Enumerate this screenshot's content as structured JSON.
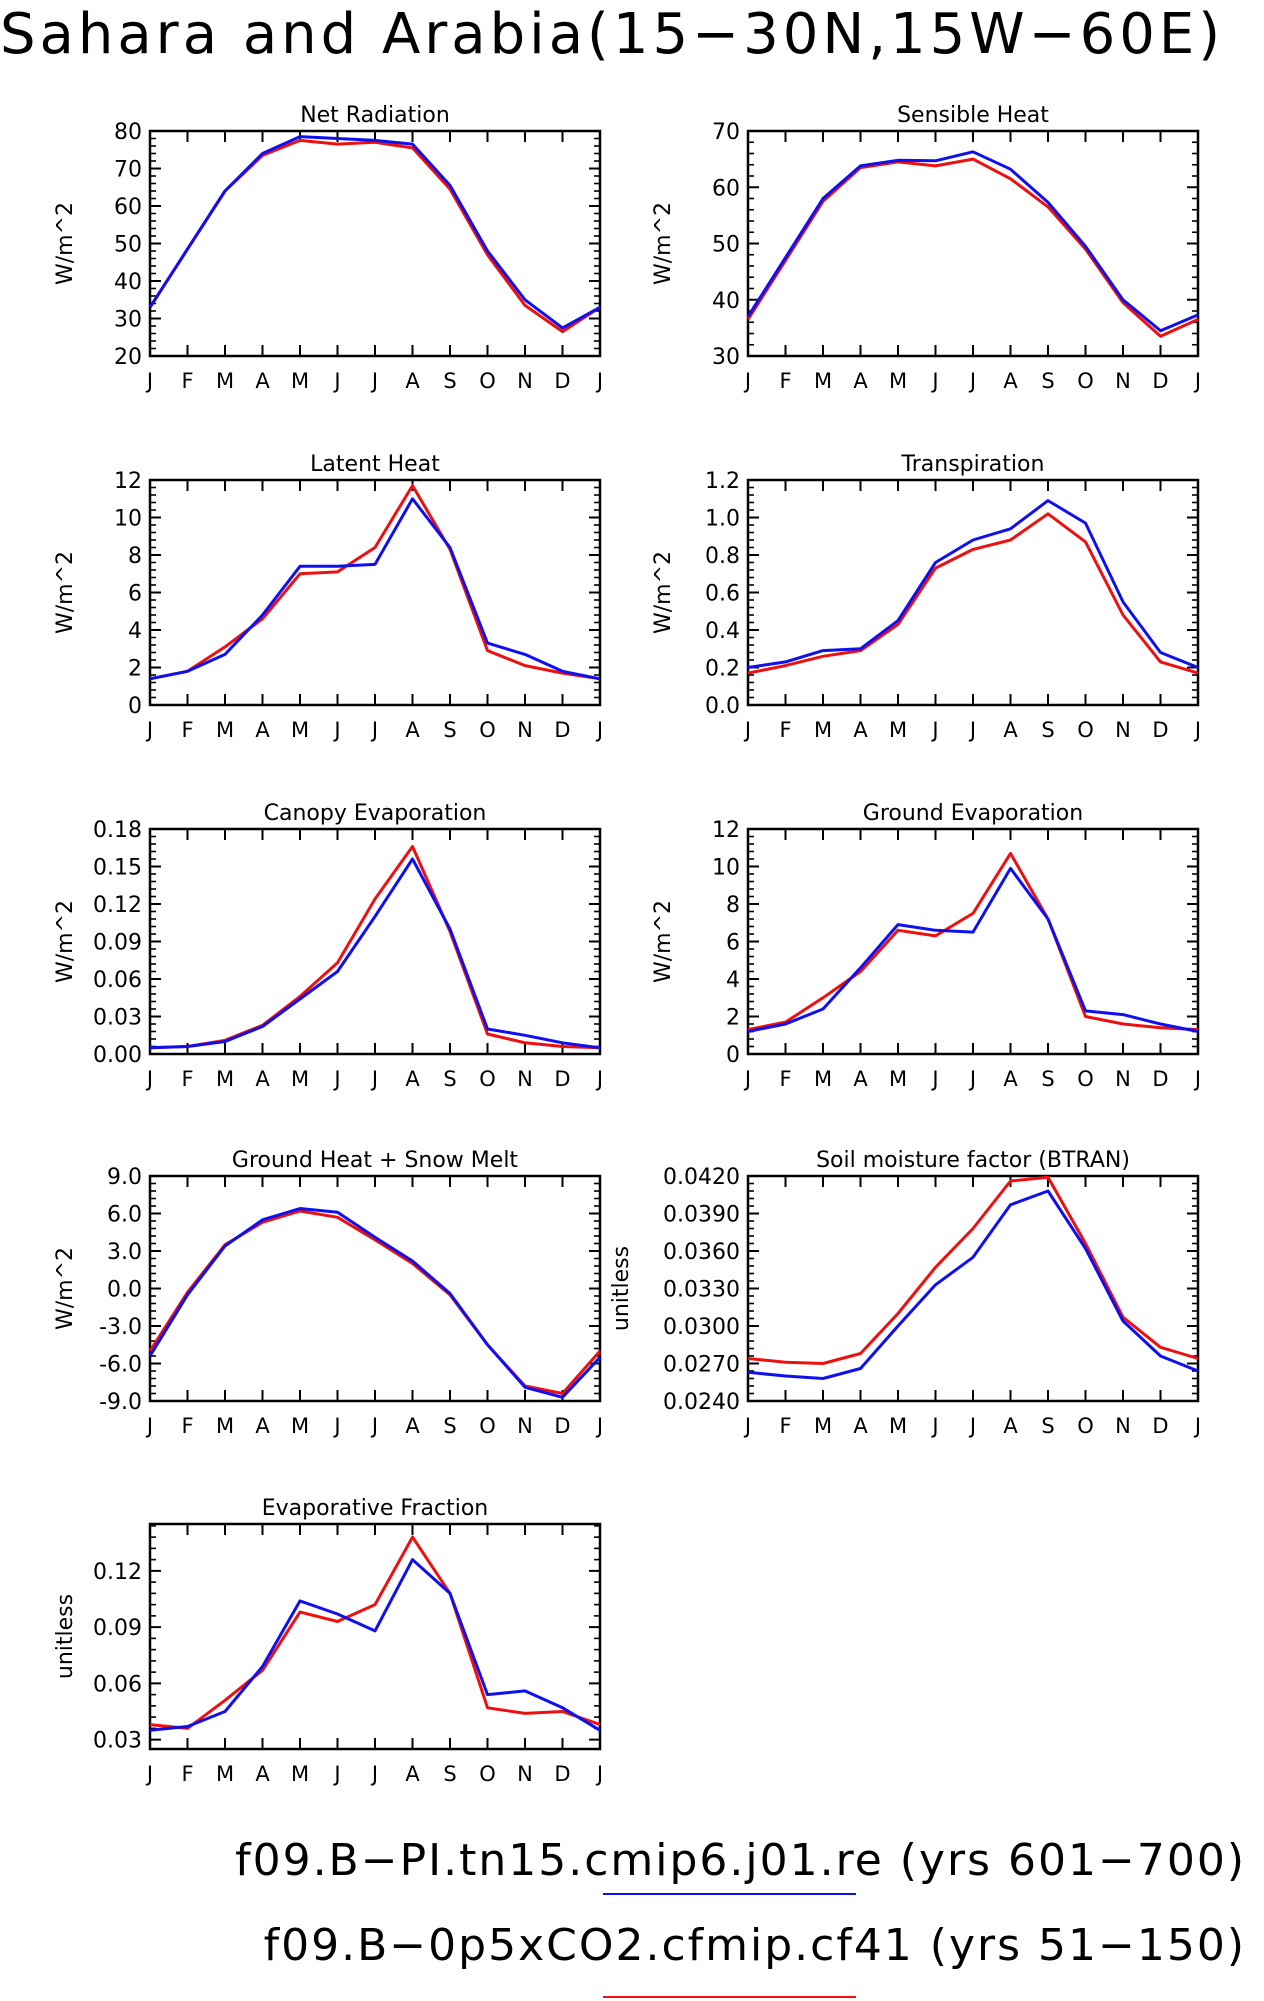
{
  "title": "Sahara and Arabia(15−30N,15W−60E)",
  "legend": {
    "items": [
      {
        "label": "f09.B−PI.tn15.cmip6.j01.re (yrs 601−700)",
        "color": "#1010ee"
      },
      {
        "label": "f09.B−0p5xCO2.cfmip.cf41 (yrs 51−150)",
        "color": "#ee1010"
      }
    ]
  },
  "chart_data": [
    {
      "type": "line",
      "title": "Net Radiation",
      "ylabel": "W/m^2",
      "xlabel": "",
      "categories": [
        "J",
        "F",
        "M",
        "A",
        "M",
        "J",
        "J",
        "A",
        "S",
        "O",
        "N",
        "D",
        "J"
      ],
      "ylim": [
        20,
        80
      ],
      "yticks": [
        "20",
        "30",
        "40",
        "50",
        "60",
        "70",
        "80"
      ],
      "series": [
        {
          "color": "#ee1010",
          "values": [
            33,
            48.5,
            64,
            73.5,
            77.5,
            76.5,
            77,
            75.5,
            64.5,
            47,
            33.5,
            26.5,
            33
          ]
        },
        {
          "color": "#1010ee",
          "values": [
            33,
            48.5,
            64,
            74,
            78.5,
            78,
            77.5,
            76.5,
            65.5,
            48,
            35,
            27.5,
            33
          ]
        }
      ]
    },
    {
      "type": "line",
      "title": "Sensible Heat",
      "ylabel": "W/m^2",
      "xlabel": "",
      "categories": [
        "J",
        "F",
        "M",
        "A",
        "M",
        "J",
        "J",
        "A",
        "S",
        "O",
        "N",
        "D",
        "J"
      ],
      "ylim": [
        30,
        70
      ],
      "yticks": [
        "30",
        "40",
        "50",
        "60",
        "70"
      ],
      "series": [
        {
          "color": "#ee1010",
          "values": [
            36.5,
            47,
            57.5,
            63.5,
            64.5,
            63.8,
            65,
            61.5,
            56.5,
            49,
            39.5,
            33.5,
            36.5
          ]
        },
        {
          "color": "#1010ee",
          "values": [
            37,
            47.5,
            58,
            63.8,
            64.8,
            64.7,
            66.3,
            63.2,
            57.3,
            49.5,
            40,
            34.5,
            37.3
          ]
        }
      ]
    },
    {
      "type": "line",
      "title": "Latent Heat",
      "ylabel": "W/m^2",
      "xlabel": "",
      "categories": [
        "J",
        "F",
        "M",
        "A",
        "M",
        "J",
        "J",
        "A",
        "S",
        "O",
        "N",
        "D",
        "J"
      ],
      "ylim": [
        0,
        12
      ],
      "yticks": [
        "0",
        "2",
        "4",
        "6",
        "8",
        "10",
        "12"
      ],
      "series": [
        {
          "color": "#ee1010",
          "values": [
            1.4,
            1.8,
            3.1,
            4.6,
            7.0,
            7.1,
            8.4,
            11.7,
            8.3,
            2.9,
            2.1,
            1.7,
            1.4
          ]
        },
        {
          "color": "#1010ee",
          "values": [
            1.4,
            1.8,
            2.7,
            4.8,
            7.4,
            7.4,
            7.5,
            11.0,
            8.4,
            3.3,
            2.7,
            1.8,
            1.4
          ]
        }
      ]
    },
    {
      "type": "line",
      "title": "Transpiration",
      "ylabel": "W/m^2",
      "xlabel": "",
      "categories": [
        "J",
        "F",
        "M",
        "A",
        "M",
        "J",
        "J",
        "A",
        "S",
        "O",
        "N",
        "D",
        "J"
      ],
      "ylim": [
        0,
        1.2
      ],
      "yticks": [
        "0.0",
        "0.2",
        "0.4",
        "0.6",
        "0.8",
        "1.0",
        "1.2"
      ],
      "series": [
        {
          "color": "#ee1010",
          "values": [
            0.17,
            0.21,
            0.26,
            0.29,
            0.43,
            0.73,
            0.83,
            0.88,
            1.02,
            0.87,
            0.48,
            0.23,
            0.17
          ]
        },
        {
          "color": "#1010ee",
          "values": [
            0.2,
            0.23,
            0.29,
            0.3,
            0.45,
            0.76,
            0.88,
            0.94,
            1.09,
            0.97,
            0.55,
            0.28,
            0.2
          ]
        }
      ]
    },
    {
      "type": "line",
      "title": "Canopy Evaporation",
      "ylabel": "W/m^2",
      "xlabel": "",
      "categories": [
        "J",
        "F",
        "M",
        "A",
        "M",
        "J",
        "J",
        "A",
        "S",
        "O",
        "N",
        "D",
        "J"
      ],
      "ylim": [
        0,
        0.18
      ],
      "yticks": [
        "0.00",
        "0.03",
        "0.06",
        "0.09",
        "0.12",
        "0.15",
        "0.18"
      ],
      "series": [
        {
          "color": "#ee1010",
          "values": [
            0.005,
            0.006,
            0.011,
            0.023,
            0.046,
            0.073,
            0.124,
            0.166,
            0.098,
            0.016,
            0.009,
            0.006,
            0.005
          ]
        },
        {
          "color": "#1010ee",
          "values": [
            0.005,
            0.006,
            0.01,
            0.022,
            0.044,
            0.066,
            0.11,
            0.156,
            0.1,
            0.02,
            0.015,
            0.009,
            0.005
          ]
        }
      ]
    },
    {
      "type": "line",
      "title": "Ground Evaporation",
      "ylabel": "W/m^2",
      "xlabel": "",
      "categories": [
        "J",
        "F",
        "M",
        "A",
        "M",
        "J",
        "J",
        "A",
        "S",
        "O",
        "N",
        "D",
        "J"
      ],
      "ylim": [
        0,
        12
      ],
      "yticks": [
        "0",
        "2",
        "4",
        "6",
        "8",
        "10",
        "12"
      ],
      "series": [
        {
          "color": "#ee1010",
          "values": [
            1.3,
            1.7,
            3.0,
            4.4,
            6.6,
            6.3,
            7.5,
            10.7,
            7.2,
            2.0,
            1.6,
            1.4,
            1.3
          ]
        },
        {
          "color": "#1010ee",
          "values": [
            1.2,
            1.6,
            2.4,
            4.6,
            6.9,
            6.6,
            6.5,
            9.9,
            7.2,
            2.3,
            2.1,
            1.6,
            1.2
          ]
        }
      ]
    },
    {
      "type": "line",
      "title": "Ground Heat + Snow Melt",
      "ylabel": "W/m^2",
      "xlabel": "",
      "categories": [
        "J",
        "F",
        "M",
        "A",
        "M",
        "J",
        "J",
        "A",
        "S",
        "O",
        "N",
        "D",
        "J"
      ],
      "ylim": [
        -9,
        9
      ],
      "yticks": [
        "-9.0",
        "-6.0",
        "-3.0",
        "0.0",
        "3.0",
        "6.0",
        "9.0"
      ],
      "series": [
        {
          "color": "#ee1010",
          "values": [
            -5.0,
            -0.3,
            3.5,
            5.3,
            6.2,
            5.7,
            3.9,
            2.0,
            -0.5,
            -4.5,
            -7.8,
            -8.4,
            -5.0
          ]
        },
        {
          "color": "#1010ee",
          "values": [
            -5.4,
            -0.5,
            3.4,
            5.5,
            6.4,
            6.1,
            4.1,
            2.2,
            -0.4,
            -4.5,
            -7.9,
            -8.7,
            -5.5
          ]
        }
      ]
    },
    {
      "type": "line",
      "title": "Soil moisture factor (BTRAN)",
      "ylabel": "unitless",
      "xlabel": "",
      "categories": [
        "J",
        "F",
        "M",
        "A",
        "M",
        "J",
        "J",
        "A",
        "S",
        "O",
        "N",
        "D",
        "J"
      ],
      "ylim": [
        0.024,
        0.042
      ],
      "yticks": [
        "0.0240",
        "0.0270",
        "0.0300",
        "0.0330",
        "0.0360",
        "0.0390",
        "0.0420"
      ],
      "series": [
        {
          "color": "#ee1010",
          "values": [
            0.0274,
            0.0271,
            0.027,
            0.0278,
            0.031,
            0.0347,
            0.0378,
            0.0416,
            0.0419,
            0.0366,
            0.0307,
            0.0283,
            0.0274
          ]
        },
        {
          "color": "#1010ee",
          "values": [
            0.0263,
            0.026,
            0.0258,
            0.0266,
            0.03,
            0.0333,
            0.0355,
            0.0397,
            0.0408,
            0.0362,
            0.0304,
            0.0276,
            0.0264
          ]
        }
      ]
    },
    {
      "type": "line",
      "title": "Evaporative Fraction",
      "ylabel": "unitless",
      "xlabel": "",
      "categories": [
        "J",
        "F",
        "M",
        "A",
        "M",
        "J",
        "J",
        "A",
        "S",
        "O",
        "N",
        "D",
        "J"
      ],
      "ylim": [
        0.025,
        0.145
      ],
      "yticks": [
        "0.03",
        "0.06",
        "0.09",
        "0.12"
      ],
      "ytick_values": [
        0.03,
        0.06,
        0.09,
        0.12
      ],
      "series": [
        {
          "color": "#ee1010",
          "values": [
            0.038,
            0.036,
            0.051,
            0.067,
            0.098,
            0.093,
            0.102,
            0.138,
            0.108,
            0.047,
            0.044,
            0.045,
            0.038
          ]
        },
        {
          "color": "#1010ee",
          "values": [
            0.035,
            0.037,
            0.045,
            0.069,
            0.104,
            0.097,
            0.088,
            0.126,
            0.108,
            0.054,
            0.056,
            0.047,
            0.035
          ]
        }
      ]
    }
  ]
}
